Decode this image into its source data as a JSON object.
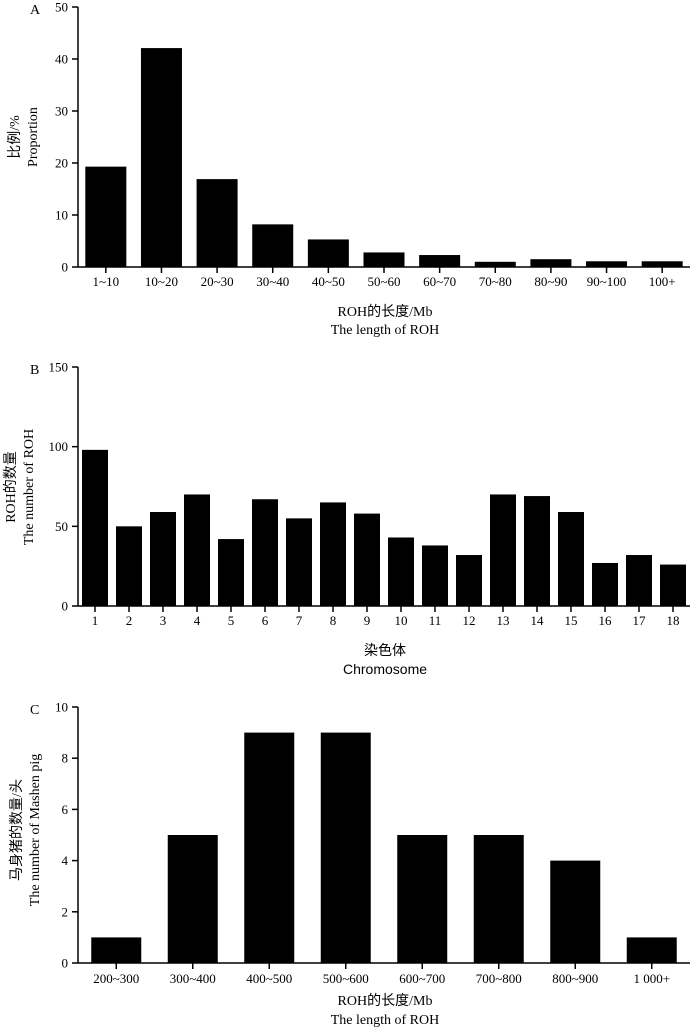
{
  "chart_data": [
    {
      "panel": "A",
      "type": "bar",
      "categories": [
        "1~10",
        "10~20",
        "20~30",
        "30~40",
        "40~50",
        "50~60",
        "60~70",
        "70~80",
        "80~90",
        "90~100",
        "100+"
      ],
      "values": [
        19.3,
        42.1,
        16.9,
        8.2,
        5.3,
        2.8,
        2.3,
        1.0,
        1.5,
        1.1,
        1.1
      ],
      "yticks": [
        0,
        10,
        20,
        30,
        40,
        50
      ],
      "ylim": [
        0,
        50
      ],
      "ylabel_cn": "比例/%",
      "ylabel_en": "Proportion",
      "xlabel_cn": "ROH的长度/Mb",
      "xlabel_en": "The length of ROH"
    },
    {
      "panel": "B",
      "type": "bar",
      "categories": [
        "1",
        "2",
        "3",
        "4",
        "5",
        "6",
        "7",
        "8",
        "9",
        "10",
        "11",
        "12",
        "13",
        "14",
        "15",
        "16",
        "17",
        "18"
      ],
      "values": [
        98,
        50,
        59,
        70,
        42,
        67,
        55,
        65,
        58,
        43,
        38,
        32,
        70,
        69,
        59,
        27,
        32,
        26
      ],
      "yticks": [
        0,
        50,
        100,
        150
      ],
      "ylim": [
        0,
        150
      ],
      "ylabel_cn": "ROH的数量",
      "ylabel_en": "The number of ROH",
      "xlabel_cn": "染色体",
      "xlabel_en": "Chromosome"
    },
    {
      "panel": "C",
      "type": "bar",
      "categories": [
        "200~300",
        "300~400",
        "400~500",
        "500~600",
        "600~700",
        "700~800",
        "800~900",
        "1 000+"
      ],
      "values": [
        1,
        5,
        9,
        9,
        5,
        5,
        4,
        1
      ],
      "yticks": [
        0,
        2,
        4,
        6,
        8,
        10
      ],
      "ylim": [
        0,
        10
      ],
      "ylabel_cn": "马身猪的数量/头",
      "ylabel_en": "The number of  Mashen pig",
      "xlabel_cn": "ROH的长度/Mb",
      "xlabel_en": "The length of ROH"
    }
  ]
}
